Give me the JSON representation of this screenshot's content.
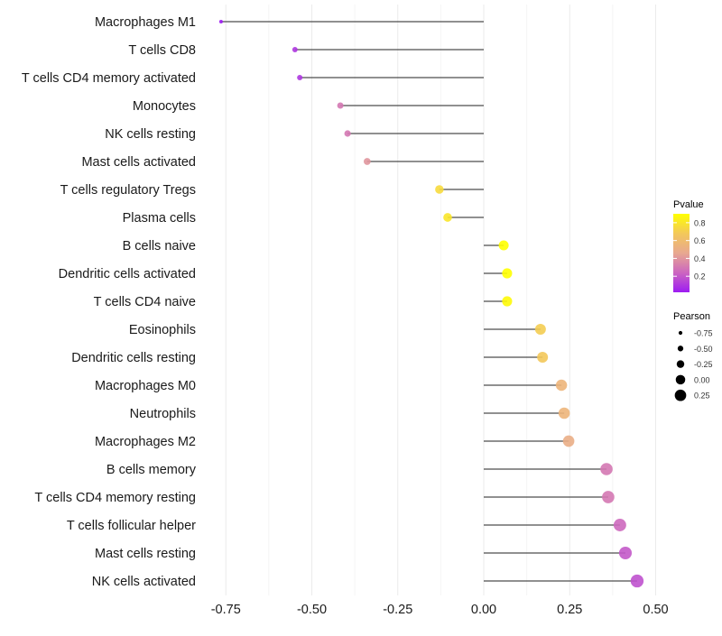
{
  "chart_data": {
    "type": "lollipop",
    "title": "",
    "xlabel": "",
    "ylabel": "",
    "xlim": [
      -0.8,
      0.55
    ],
    "xticks": [
      -0.75,
      -0.5,
      -0.25,
      0.0,
      0.25,
      0.5
    ],
    "xtick_labels": [
      "-0.75",
      "-0.50",
      "-0.25",
      "0.00",
      "0.25",
      "0.50"
    ],
    "grid": true,
    "categories": [
      "Macrophages M1",
      "T cells CD8",
      "T cells CD4 memory activated",
      "Monocytes",
      "NK cells resting",
      "Mast cells activated",
      "T cells regulatory  Tregs",
      "Plasma cells",
      "B cells naive",
      "Dendritic cells activated",
      "T cells CD4 naive",
      "Eosinophils",
      "Dendritic cells resting",
      "Macrophages M0",
      "Neutrophils",
      "Macrophages M2",
      "B cells memory",
      "T cells CD4 memory resting",
      "T cells follicular helper",
      "Mast cells resting",
      "NK cells activated"
    ],
    "pearson": [
      -0.764,
      -0.549,
      -0.535,
      -0.417,
      -0.396,
      -0.339,
      -0.129,
      -0.105,
      0.058,
      0.068,
      0.068,
      0.165,
      0.171,
      0.226,
      0.234,
      0.247,
      0.357,
      0.362,
      0.396,
      0.412,
      0.446
    ],
    "pvalue": [
      0.02,
      0.1,
      0.1,
      0.3,
      0.3,
      0.4,
      0.75,
      0.8,
      0.9,
      0.9,
      0.88,
      0.7,
      0.68,
      0.55,
      0.55,
      0.5,
      0.3,
      0.3,
      0.25,
      0.2,
      0.18
    ],
    "legend_color": {
      "title": "Pvalue",
      "range": [
        0.02,
        0.9
      ],
      "ticks": [
        0.2,
        0.4,
        0.6,
        0.8
      ],
      "tick_labels": [
        "0.2",
        "0.4",
        "0.6",
        "0.8"
      ],
      "colors": [
        "#9d1cf2",
        "#cc66c0",
        "#e8a890",
        "#f3c85a",
        "#ffff00"
      ]
    },
    "legend_size": {
      "title": "Pearson",
      "values": [
        -0.75,
        -0.5,
        -0.25,
        0.0,
        0.25
      ],
      "labels": [
        "-0.75",
        "-0.50",
        "-0.25",
        "0.00",
        "0.25"
      ]
    },
    "legend_position": "right"
  }
}
